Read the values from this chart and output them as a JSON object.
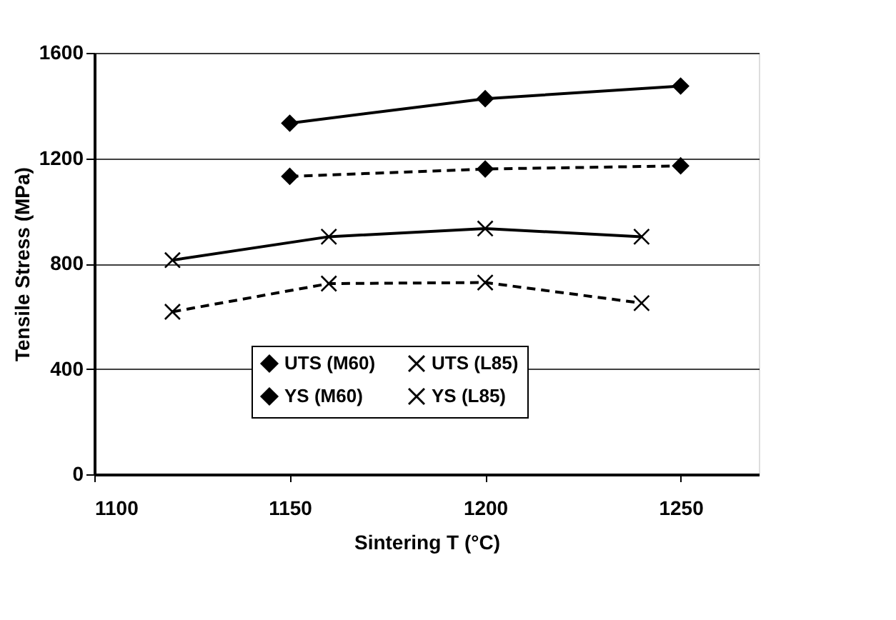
{
  "chart_data": {
    "type": "line",
    "xlabel": "Sintering T (°C)",
    "ylabel": "Tensile Stress (MPa)",
    "xlim": [
      1100,
      1270
    ],
    "xticks": [
      1100,
      1150,
      1200,
      1250
    ],
    "ylim": [
      0,
      1600
    ],
    "yticks": [
      0,
      400,
      800,
      1200,
      1600
    ],
    "grid": "y",
    "legend": "bottom",
    "series": [
      {
        "name": "UTS (M60)",
        "color": "#000000",
        "marker": "diamond",
        "line_style": "solid",
        "x": [
          1150,
          1200,
          1250
        ],
        "values": [
          1333,
          1426,
          1474
        ]
      },
      {
        "name": "UTS (L85)",
        "color": "#000000",
        "marker": "cross",
        "line_style": "solid",
        "x": [
          1120,
          1160,
          1200,
          1240
        ],
        "values": [
          813,
          902,
          933,
          902
        ]
      },
      {
        "name": "YS (M60)",
        "color": "#000000",
        "marker": "diamond",
        "line_style": "dashed",
        "x": [
          1150,
          1200,
          1250
        ],
        "values": [
          1131,
          1159,
          1171
        ]
      },
      {
        "name": "YS (L85)",
        "color": "#000000",
        "marker": "cross",
        "line_style": "dashed",
        "x": [
          1120,
          1160,
          1200,
          1240
        ],
        "values": [
          617,
          724,
          728,
          650
        ]
      }
    ]
  }
}
